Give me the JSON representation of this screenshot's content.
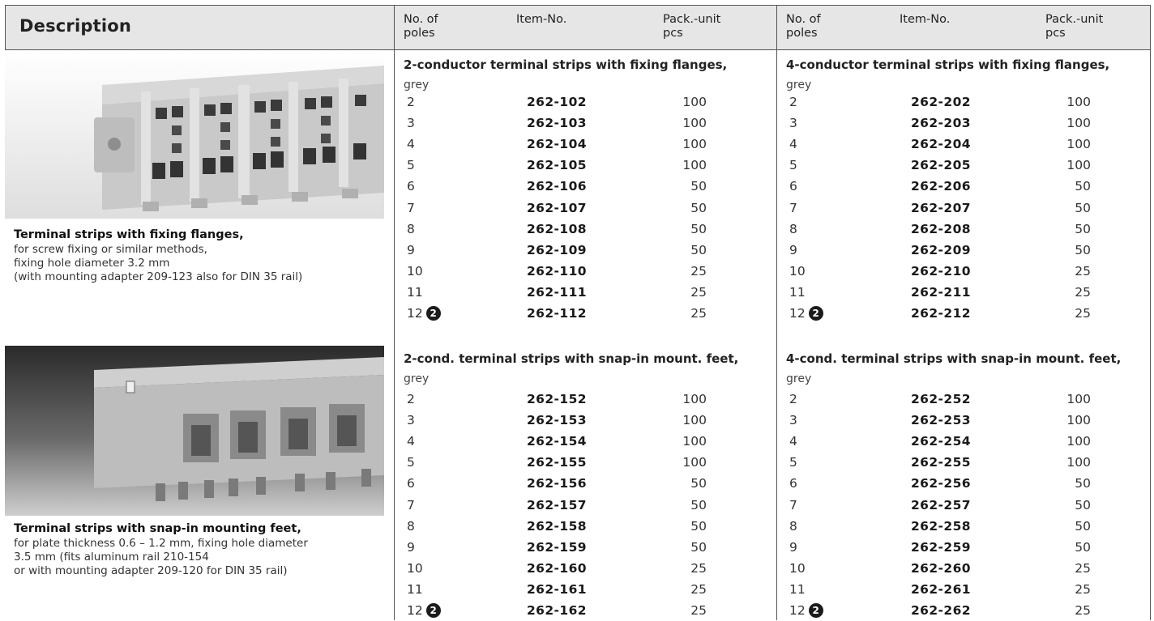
{
  "header": {
    "description": "Description",
    "col_poles": [
      "No. of",
      "poles"
    ],
    "col_item": "Item-No.",
    "col_pack": [
      "Pack.-unit",
      "pcs"
    ]
  },
  "products": [
    {
      "title": "Terminal strips with fixing flanges,",
      "lines": [
        "for screw fixing or similar methods,",
        "fixing hole diameter 3.2 mm",
        "(with mounting adapter 209-123 also for DIN 35 rail)"
      ],
      "tables": [
        {
          "title": "2-conductor terminal strips with fixing flanges,",
          "color": "grey",
          "rows": [
            {
              "poles": "2",
              "item": "262-102",
              "pack": "100"
            },
            {
              "poles": "3",
              "item": "262-103",
              "pack": "100"
            },
            {
              "poles": "4",
              "item": "262-104",
              "pack": "100"
            },
            {
              "poles": "5",
              "item": "262-105",
              "pack": "100"
            },
            {
              "poles": "6",
              "item": "262-106",
              "pack": "50"
            },
            {
              "poles": "7",
              "item": "262-107",
              "pack": "50"
            },
            {
              "poles": "8",
              "item": "262-108",
              "pack": "50"
            },
            {
              "poles": "9",
              "item": "262-109",
              "pack": "50"
            },
            {
              "poles": "10",
              "item": "262-110",
              "pack": "25"
            },
            {
              "poles": "11",
              "item": "262-111",
              "pack": "25"
            },
            {
              "poles": "12",
              "item": "262-112",
              "pack": "25",
              "note": "2"
            }
          ]
        },
        {
          "title": "4-conductor terminal strips with fixing flanges,",
          "color": "grey",
          "rows": [
            {
              "poles": "2",
              "item": "262-202",
              "pack": "100"
            },
            {
              "poles": "3",
              "item": "262-203",
              "pack": "100"
            },
            {
              "poles": "4",
              "item": "262-204",
              "pack": "100"
            },
            {
              "poles": "5",
              "item": "262-205",
              "pack": "100"
            },
            {
              "poles": "6",
              "item": "262-206",
              "pack": "50"
            },
            {
              "poles": "7",
              "item": "262-207",
              "pack": "50"
            },
            {
              "poles": "8",
              "item": "262-208",
              "pack": "50"
            },
            {
              "poles": "9",
              "item": "262-209",
              "pack": "50"
            },
            {
              "poles": "10",
              "item": "262-210",
              "pack": "25"
            },
            {
              "poles": "11",
              "item": "262-211",
              "pack": "25"
            },
            {
              "poles": "12",
              "item": "262-212",
              "pack": "25",
              "note": "2"
            }
          ]
        }
      ]
    },
    {
      "title": "Terminal strips with snap-in mounting feet,",
      "lines": [
        "for plate thickness 0.6 – 1.2 mm, fixing hole diameter",
        "3.5 mm (fits aluminum rail 210-154",
        "or with mounting adapter 209-120 for DIN 35 rail)"
      ],
      "tables": [
        {
          "title": "2-cond. terminal strips with snap-in mount. feet,",
          "color": "grey",
          "rows": [
            {
              "poles": "2",
              "item": "262-152",
              "pack": "100"
            },
            {
              "poles": "3",
              "item": "262-153",
              "pack": "100"
            },
            {
              "poles": "4",
              "item": "262-154",
              "pack": "100"
            },
            {
              "poles": "5",
              "item": "262-155",
              "pack": "100"
            },
            {
              "poles": "6",
              "item": "262-156",
              "pack": "50"
            },
            {
              "poles": "7",
              "item": "262-157",
              "pack": "50"
            },
            {
              "poles": "8",
              "item": "262-158",
              "pack": "50"
            },
            {
              "poles": "9",
              "item": "262-159",
              "pack": "50"
            },
            {
              "poles": "10",
              "item": "262-160",
              "pack": "25"
            },
            {
              "poles": "11",
              "item": "262-161",
              "pack": "25"
            },
            {
              "poles": "12",
              "item": "262-162",
              "pack": "25",
              "note": "2"
            }
          ]
        },
        {
          "title": "4-cond. terminal strips with snap-in mount. feet,",
          "color": "grey",
          "rows": [
            {
              "poles": "2",
              "item": "262-252",
              "pack": "100"
            },
            {
              "poles": "3",
              "item": "262-253",
              "pack": "100"
            },
            {
              "poles": "4",
              "item": "262-254",
              "pack": "100"
            },
            {
              "poles": "5",
              "item": "262-255",
              "pack": "100"
            },
            {
              "poles": "6",
              "item": "262-256",
              "pack": "50"
            },
            {
              "poles": "7",
              "item": "262-257",
              "pack": "50"
            },
            {
              "poles": "8",
              "item": "262-258",
              "pack": "50"
            },
            {
              "poles": "9",
              "item": "262-259",
              "pack": "50"
            },
            {
              "poles": "10",
              "item": "262-260",
              "pack": "25"
            },
            {
              "poles": "11",
              "item": "262-261",
              "pack": "25"
            },
            {
              "poles": "12",
              "item": "262-262",
              "pack": "25",
              "note": "2"
            }
          ]
        }
      ]
    }
  ]
}
